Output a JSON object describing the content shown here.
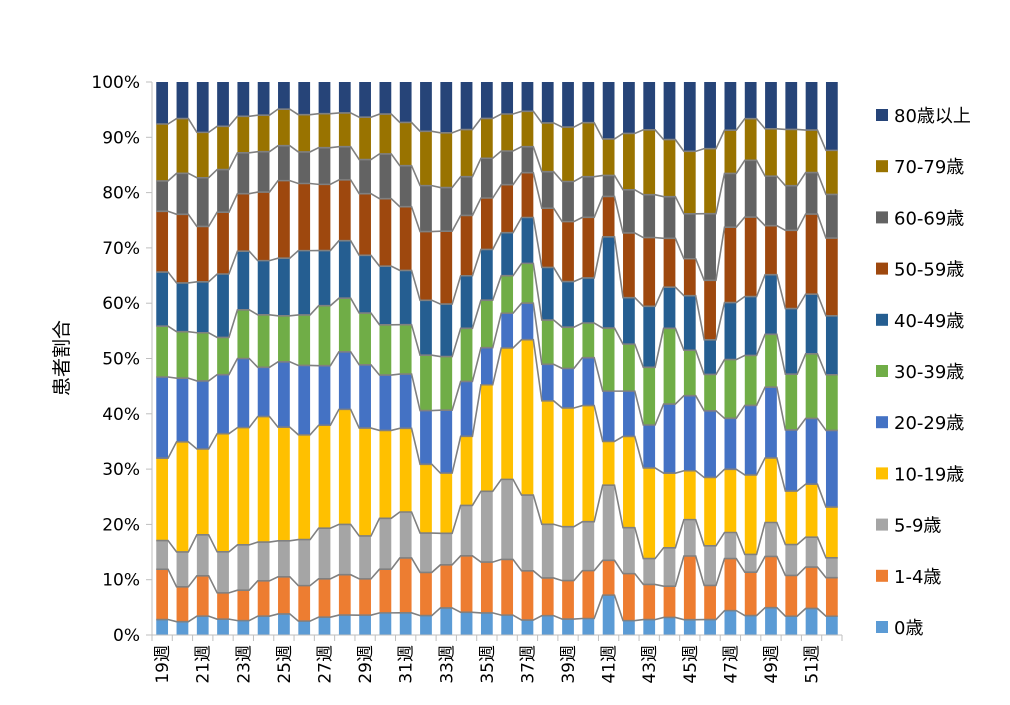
{
  "chart_data": {
    "type": "bar",
    "stacked": "percent",
    "title": "",
    "xlabel": "",
    "ylabel": "患者割合",
    "ylim": [
      0,
      100
    ],
    "yticks": [
      "0%",
      "10%",
      "20%",
      "30%",
      "40%",
      "50%",
      "60%",
      "70%",
      "80%",
      "90%",
      "100%"
    ],
    "grid": false,
    "legend_position": "right",
    "categories": [
      "19週",
      "20週",
      "21週",
      "22週",
      "23週",
      "24週",
      "25週",
      "26週",
      "27週",
      "28週",
      "29週",
      "30週",
      "31週",
      "32週",
      "33週",
      "34週",
      "35週",
      "36週",
      "37週",
      "38週",
      "39週",
      "40週",
      "41週",
      "42週",
      "43週",
      "44週",
      "45週",
      "46週",
      "47週",
      "48週",
      "49週",
      "50週",
      "51週",
      "52週"
    ],
    "tick_labels": [
      "19週",
      "21週",
      "23週",
      "25週",
      "27週",
      "29週",
      "31週",
      "33週",
      "35週",
      "37週",
      "39週",
      "41週",
      "43週",
      "45週",
      "47週",
      "49週",
      "51週"
    ],
    "series": [
      {
        "name": "0歳",
        "color": "#5B9BD5",
        "values": [
          2.8,
          2.4,
          3.4,
          2.9,
          2.6,
          3.4,
          3.8,
          2.5,
          3.2,
          3.6,
          3.6,
          4.0,
          4.0,
          3.5,
          4.9,
          4.1,
          4.0,
          3.6,
          2.7,
          3.5,
          2.9,
          3.0,
          7.2,
          2.6,
          2.8,
          3.2,
          2.7,
          2.8,
          4.4,
          3.5,
          4.9,
          3.4,
          4.8,
          3.4
        ]
      },
      {
        "name": "1-4歳",
        "color": "#ED7D31",
        "values": [
          9.1,
          6.3,
          7.3,
          4.8,
          5.5,
          6.4,
          6.7,
          6.4,
          6.9,
          7.3,
          6.6,
          7.9,
          9.9,
          7.8,
          7.8,
          10.2,
          9.2,
          10.1,
          8.9,
          6.8,
          7.0,
          8.7,
          6.3,
          8.5,
          6.4,
          5.7,
          11.2,
          6.2,
          9.4,
          7.8,
          9.2,
          7.4,
          7.5,
          7.0
        ]
      },
      {
        "name": "5-9歳",
        "color": "#A5A5A5",
        "values": [
          5.2,
          6.3,
          7.4,
          7.5,
          8.2,
          7.0,
          6.5,
          8.3,
          9.1,
          9.1,
          7.8,
          9.2,
          8.3,
          7.1,
          5.7,
          9.1,
          12.8,
          14.5,
          13.7,
          9.7,
          9.8,
          8.9,
          13.6,
          8.3,
          4.7,
          7.0,
          6.4,
          7.2,
          4.7,
          3.2,
          6.1,
          5.6,
          5.4,
          3.6
        ]
      },
      {
        "name": "10-19歳",
        "color": "#FFC000",
        "values": [
          14.9,
          19.9,
          15.5,
          21.6,
          21.2,
          22.7,
          20.5,
          18.9,
          18.5,
          20.8,
          19.6,
          15.9,
          15.1,
          12.4,
          10.9,
          12.5,
          19.3,
          23.8,
          28.1,
          22.3,
          21.6,
          21.1,
          7.9,
          16.5,
          16.5,
          13.6,
          8.6,
          12.4,
          11.4,
          14.3,
          11.6,
          9.7,
          9.6,
          9.2
        ]
      },
      {
        "name": "20-29歳",
        "color": "#4472C4",
        "values": [
          14.7,
          11.5,
          12.3,
          10.8,
          12.5,
          8.9,
          11.8,
          12.5,
          10.7,
          10.4,
          11.5,
          10.0,
          9.8,
          9.7,
          11.4,
          9.9,
          6.7,
          6.3,
          6.6,
          6.6,
          7.2,
          8.7,
          9.1,
          8.2,
          7.8,
          12.6,
          13.2,
          12.1,
          9.2,
          12.5,
          12.7,
          11.1,
          11.9,
          13.9
        ]
      },
      {
        "name": "30-39歳",
        "color": "#70AD47",
        "values": [
          9.2,
          8.4,
          8.7,
          6.8,
          8.8,
          9.5,
          8.3,
          9.1,
          10.8,
          9.7,
          9.4,
          9.1,
          8.9,
          10.0,
          9.7,
          9.6,
          8.6,
          6.8,
          7.2,
          8.0,
          7.5,
          6.3,
          11.4,
          8.5,
          10.5,
          13.8,
          8.0,
          6.6,
          10.6,
          9.0,
          9.5,
          10.1,
          11.7,
          10.1
        ]
      },
      {
        "name": "40-49歳",
        "color": "#255E91",
        "values": [
          9.8,
          8.8,
          9.2,
          11.6,
          10.6,
          9.8,
          10.4,
          11.6,
          9.9,
          10.4,
          10.5,
          10.6,
          9.8,
          9.9,
          9.5,
          9.5,
          9.2,
          7.8,
          8.3,
          9.5,
          8.3,
          8.2,
          16.5,
          8.4,
          11.1,
          7.5,
          9.6,
          6.3,
          10.3,
          10.6,
          10.7,
          11.9,
          10.8,
          10.7
        ]
      },
      {
        "name": "50-59歳",
        "color": "#9E480E",
        "values": [
          11.0,
          12.4,
          10.0,
          11.3,
          10.4,
          12.4,
          14.0,
          12.1,
          11.9,
          11.0,
          11.2,
          12.2,
          11.5,
          12.4,
          13.2,
          10.9,
          9.3,
          8.7,
          8.1,
          10.7,
          10.9,
          11.0,
          7.3,
          11.7,
          12.5,
          8.9,
          6.5,
          10.8,
          13.6,
          14.3,
          8.8,
          14.2,
          14.5,
          14.1
        ]
      },
      {
        "name": "60-69歳",
        "color": "#636363",
        "values": [
          5.5,
          7.4,
          8.8,
          7.8,
          7.4,
          7.3,
          6.3,
          5.7,
          6.6,
          6.0,
          6.2,
          8.1,
          7.4,
          8.3,
          7.9,
          7.0,
          7.2,
          6.1,
          4.7,
          6.6,
          7.3,
          7.4,
          3.8,
          7.8,
          7.8,
          7.6,
          7.9,
          12.1,
          9.7,
          10.2,
          8.9,
          8.1,
          7.5,
          7.9
        ]
      },
      {
        "name": "70-79歳",
        "color": "#997300",
        "values": [
          10.3,
          9.9,
          8.2,
          7.9,
          6.6,
          6.6,
          6.6,
          6.7,
          6.1,
          6.1,
          7.7,
          7.2,
          7.8,
          9.8,
          9.9,
          8.5,
          7.2,
          6.7,
          6.4,
          8.8,
          9.9,
          9.8,
          6.6,
          10.2,
          11.8,
          10.4,
          11.0,
          11.8,
          7.8,
          7.5,
          8.5,
          10.2,
          7.7,
          8.0
        ]
      },
      {
        "name": "80歳以上",
        "color": "#264478",
        "values": [
          7.6,
          6.6,
          9.1,
          8.1,
          6.2,
          6.0,
          4.9,
          5.9,
          5.7,
          5.6,
          6.4,
          5.8,
          7.3,
          8.9,
          9.2,
          8.6,
          6.6,
          5.8,
          5.3,
          7.4,
          8.2,
          7.4,
          10.3,
          9.3,
          8.7,
          10.5,
          12.2,
          12.1,
          8.7,
          6.6,
          8.4,
          8.6,
          8.7,
          12.4
        ]
      }
    ]
  }
}
